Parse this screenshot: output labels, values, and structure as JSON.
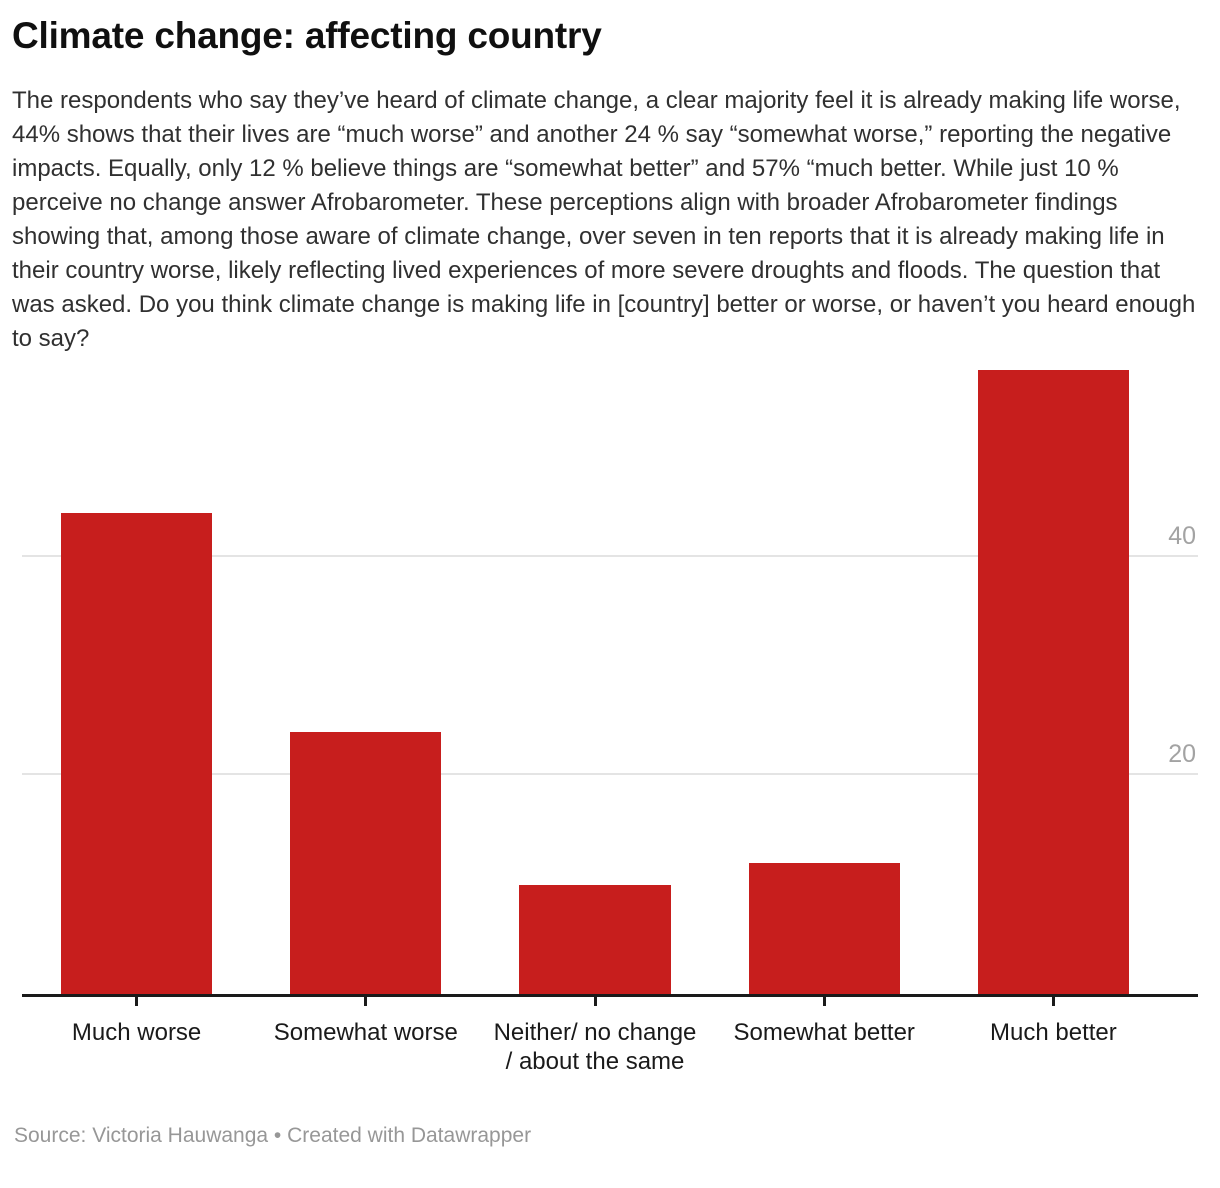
{
  "header": {
    "title": "Climate change: affecting country",
    "description": "The respondents who say they’ve heard of climate change, a clear majority feel it is already making life worse, 44% shows that their lives are “much worse” and another 24 % say “somewhat worse,” reporting the negative impacts. Equally, only 12 % believe things are “somewhat better” and 57% “much better.  While just 10 % perceive no change answer Afrobarometer. These perceptions align with broader Afrobarometer findings showing that, among those aware of climate change, over seven in ten reports that it is already making life in their country worse, likely reflecting lived experiences of more severe droughts and floods.  The question that was asked.   Do you think climate change is making life in [country] better or worse, or haven’t you heard enough to say?"
  },
  "chart_data": {
    "type": "bar",
    "categories": [
      "Much worse",
      "Somewhat worse",
      "Neither/ no change\n/ about the same",
      "Somewhat better",
      "Much better"
    ],
    "values": [
      44,
      24,
      10,
      12,
      57
    ],
    "title": "Climate change: affecting country",
    "xlabel": "",
    "ylabel": "",
    "ylim": [
      0,
      57
    ],
    "yticks": [
      20,
      40
    ],
    "grid": true,
    "legend": "none",
    "bar_color": "#c71e1d",
    "grid_color": "#e4e4e4",
    "axis_color": "#1a1a1a",
    "tick_label_color": "#a3a3a3"
  },
  "footer": {
    "source": "Source: Victoria Hauwanga • Created with Datawrapper"
  }
}
